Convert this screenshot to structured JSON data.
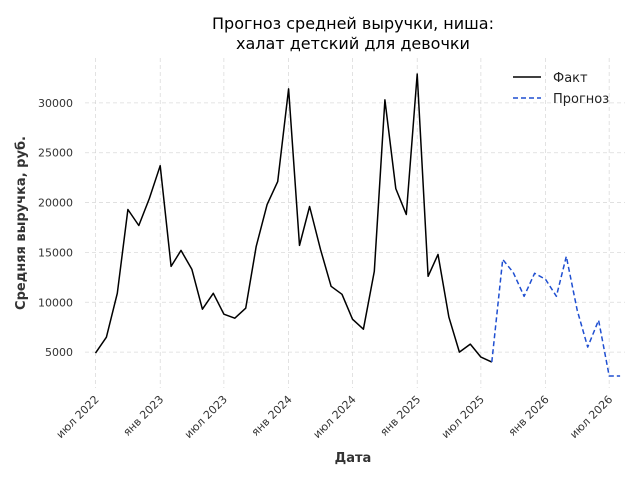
{
  "chart_data": {
    "type": "line",
    "title_line1": "Прогноз средней выручки, ниша:",
    "title_line2": "халат детский для девочки",
    "xlabel": "Дата",
    "ylabel": "Средняя выручка, руб.",
    "ylim": [
      1400,
      34500
    ],
    "xlim": [
      "2022-06-01",
      "2026-08-15"
    ],
    "y_ticks": [
      5000,
      10000,
      15000,
      20000,
      25000,
      30000
    ],
    "x_ticks": [
      {
        "date": "2022-07-01",
        "label": "июл 2022"
      },
      {
        "date": "2023-01-01",
        "label": "янв 2023"
      },
      {
        "date": "2023-07-01",
        "label": "июл 2023"
      },
      {
        "date": "2024-01-01",
        "label": "янв 2024"
      },
      {
        "date": "2024-07-01",
        "label": "июл 2024"
      },
      {
        "date": "2025-01-01",
        "label": "янв 2025"
      },
      {
        "date": "2025-07-01",
        "label": "июл 2025"
      },
      {
        "date": "2026-01-01",
        "label": "янв 2026"
      },
      {
        "date": "2026-07-01",
        "label": "июл 2026"
      }
    ],
    "grid": true,
    "legend_position": "top-right",
    "series": [
      {
        "name": "Факт",
        "color": "#000000",
        "style": "solid",
        "points": [
          [
            "2022-07-01",
            4900
          ],
          [
            "2022-08-01",
            6500
          ],
          [
            "2022-09-01",
            10900
          ],
          [
            "2022-10-01",
            19300
          ],
          [
            "2022-11-01",
            17700
          ],
          [
            "2022-12-01",
            20400
          ],
          [
            "2023-01-01",
            23700
          ],
          [
            "2023-02-01",
            13600
          ],
          [
            "2023-03-01",
            15200
          ],
          [
            "2023-04-01",
            13300
          ],
          [
            "2023-05-01",
            9300
          ],
          [
            "2023-06-01",
            10900
          ],
          [
            "2023-07-01",
            8800
          ],
          [
            "2023-08-01",
            8400
          ],
          [
            "2023-09-01",
            9400
          ],
          [
            "2023-10-01",
            15600
          ],
          [
            "2023-11-01",
            19800
          ],
          [
            "2023-12-01",
            22100
          ],
          [
            "2024-01-01",
            31400
          ],
          [
            "2024-02-01",
            15700
          ],
          [
            "2024-03-01",
            19600
          ],
          [
            "2024-04-01",
            15300
          ],
          [
            "2024-05-01",
            11600
          ],
          [
            "2024-06-01",
            10800
          ],
          [
            "2024-07-01",
            8300
          ],
          [
            "2024-08-01",
            7300
          ],
          [
            "2024-09-01",
            13100
          ],
          [
            "2024-10-01",
            30300
          ],
          [
            "2024-11-01",
            21400
          ],
          [
            "2024-12-01",
            18800
          ],
          [
            "2025-01-01",
            32900
          ],
          [
            "2025-02-01",
            12600
          ],
          [
            "2025-03-01",
            14800
          ],
          [
            "2025-04-01",
            8500
          ],
          [
            "2025-05-01",
            5000
          ],
          [
            "2025-06-01",
            5800
          ],
          [
            "2025-07-01",
            4500
          ],
          [
            "2025-08-01",
            4000
          ]
        ]
      },
      {
        "name": "Прогноз",
        "color": "#1f4fd1",
        "style": "dashed",
        "points": [
          [
            "2025-08-01",
            4000
          ],
          [
            "2025-09-01",
            14300
          ],
          [
            "2025-10-01",
            13000
          ],
          [
            "2025-11-01",
            10600
          ],
          [
            "2025-12-01",
            12900
          ],
          [
            "2026-01-01",
            12300
          ],
          [
            "2026-02-01",
            10600
          ],
          [
            "2026-03-01",
            14600
          ],
          [
            "2026-04-01",
            9200
          ],
          [
            "2026-05-01",
            5500
          ],
          [
            "2026-06-01",
            8200
          ],
          [
            "2026-07-01",
            2600
          ],
          [
            "2026-08-01",
            2600
          ]
        ]
      }
    ]
  }
}
